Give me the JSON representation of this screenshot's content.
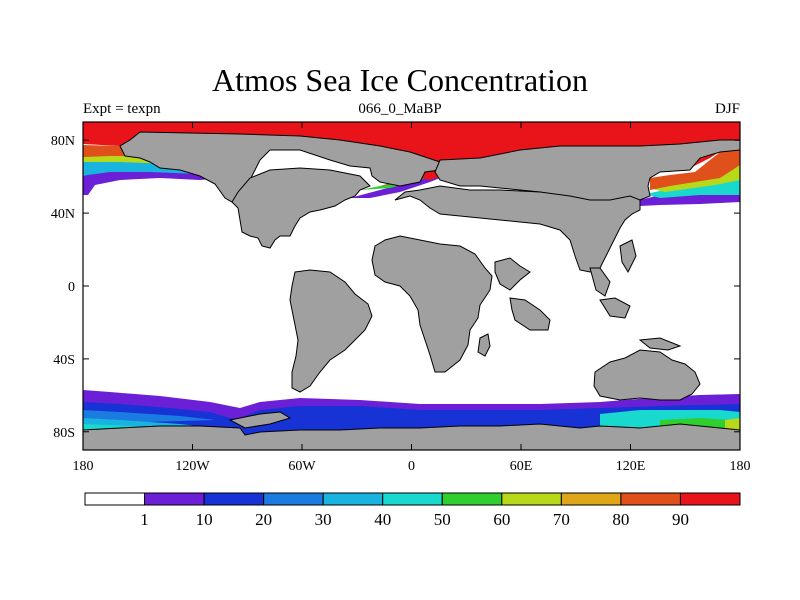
{
  "title": "Atmos Sea Ice Concentration",
  "left_label": "Expt = texpn",
  "center_label": "066_0_MaBP",
  "right_label": "DJF",
  "map": {
    "projection": "cylindrical-equidistant",
    "lon_range": [
      -180,
      180
    ],
    "lat_range": [
      -90,
      90
    ],
    "lon_ticks": [
      {
        "value": -180,
        "label": "180"
      },
      {
        "value": -120,
        "label": "120W"
      },
      {
        "value": -60,
        "label": "60W"
      },
      {
        "value": 0,
        "label": "0"
      },
      {
        "value": 60,
        "label": "60E"
      },
      {
        "value": 120,
        "label": "120E"
      },
      {
        "value": 180,
        "label": "180"
      }
    ],
    "lat_ticks": [
      {
        "value": 80,
        "label": "80N"
      },
      {
        "value": 40,
        "label": "40N"
      },
      {
        "value": 0,
        "label": "0"
      },
      {
        "value": -40,
        "label": "40S"
      },
      {
        "value": -80,
        "label": "80S"
      }
    ],
    "land_color": "#a0a0a0",
    "ocean_color": "#ffffff"
  },
  "colorbar": {
    "colors": [
      "#ffffff",
      "#6b1fd6",
      "#1733d6",
      "#1a7be0",
      "#19b3e0",
      "#19d9cf",
      "#2ecf2e",
      "#b8d91a",
      "#e0a61a",
      "#e0501a",
      "#e8141a"
    ],
    "labels": [
      "1",
      "10",
      "20",
      "30",
      "40",
      "50",
      "60",
      "70",
      "80",
      "90"
    ]
  }
}
